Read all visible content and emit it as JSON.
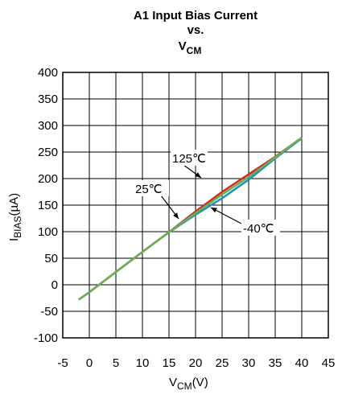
{
  "chart_data": {
    "type": "line",
    "title": [
      "A1 Input Bias Current",
      "vs.",
      "V",
      "CM"
    ],
    "xlabel": [
      "V",
      "CM",
      "(V)"
    ],
    "ylabel": [
      "I",
      "BIAS",
      "(µA)"
    ],
    "x": [
      -2,
      0,
      5,
      10,
      15,
      20,
      25,
      30,
      35,
      40
    ],
    "series": [
      {
        "name": "125℃",
        "color": "#d62728",
        "values": [
          -28,
          -14,
          24,
          62,
          99,
          138,
          175,
          208,
          241,
          277
        ]
      },
      {
        "name": "-40℃",
        "color": "#1f8fc4",
        "values": [
          -28,
          -14,
          24,
          62,
          99,
          132,
          163,
          198,
          238,
          276
        ]
      },
      {
        "name": "25℃",
        "color": "#6ab04c",
        "values": [
          -28,
          -14,
          24,
          62,
          99,
          135,
          170,
          203,
          240,
          277
        ]
      }
    ],
    "xlim": [
      -5,
      45
    ],
    "xticks": [
      -5,
      0,
      5,
      10,
      15,
      20,
      25,
      30,
      35,
      40,
      45
    ],
    "ylim": [
      -100,
      400
    ],
    "yticks": [
      -100,
      -50,
      0,
      50,
      100,
      150,
      200,
      250,
      300,
      350,
      400
    ],
    "grid": true
  }
}
